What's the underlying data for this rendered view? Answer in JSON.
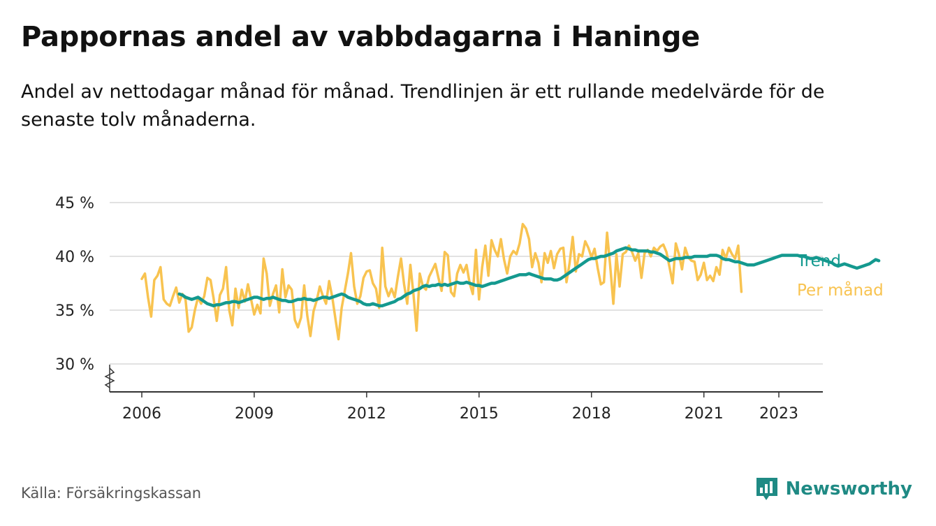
{
  "header": {
    "title": "Pappornas andel av vabbdagarna i Haninge",
    "subtitle": "Andel av nettodagar månad för månad. Trendlinjen är ett rullande medelvärde för de senaste tolv månaderna."
  },
  "footer": {
    "source": "Källa: Försäkringskassan",
    "brand": "Newsworthy"
  },
  "colors": {
    "monthly": "#f8c350",
    "trend": "#14998f",
    "grid": "#d9d9d9",
    "axis": "#333333",
    "brand": "#1f8a84"
  },
  "chart_data": {
    "type": "line",
    "title": "Pappornas andel av vabbdagarna i Haninge",
    "xlabel": "",
    "ylabel": "",
    "x_tick_labels": [
      "2006",
      "2009",
      "2012",
      "2015",
      "2018",
      "2021",
      "2023"
    ],
    "y_tick_labels": [
      "30 %",
      "35 %",
      "40 %",
      "45 %"
    ],
    "y_ticks": [
      30,
      35,
      40,
      45
    ],
    "ylim": [
      30,
      45
    ],
    "y_axis_break": true,
    "x_range": [
      "2005-07",
      "2024-03"
    ],
    "grid": "horizontal",
    "legend": "direct labels at line ends",
    "series": [
      {
        "name": "Per månad",
        "start": "2006-01",
        "frequency": "monthly",
        "values": [
          37.9,
          38.4,
          36.2,
          34.4,
          37.8,
          38.2,
          39.0,
          36.0,
          35.6,
          35.4,
          36.3,
          37.1,
          35.7,
          36.5,
          36.0,
          33.0,
          33.4,
          35.0,
          36.2,
          35.6,
          36.3,
          38.0,
          37.8,
          36.1,
          34.0,
          36.4,
          37.0,
          39.0,
          35.0,
          33.6,
          37.0,
          35.2,
          36.9,
          35.8,
          37.4,
          36.0,
          34.6,
          35.5,
          34.7,
          39.8,
          38.4,
          35.4,
          36.5,
          37.3,
          34.8,
          38.8,
          36.2,
          37.3,
          36.9,
          34.1,
          33.4,
          34.3,
          37.3,
          34.5,
          32.6,
          34.9,
          35.9,
          37.2,
          36.3,
          35.6,
          37.7,
          36.2,
          34.2,
          32.3,
          35.2,
          36.8,
          38.4,
          40.3,
          37.2,
          35.6,
          36.3,
          38.0,
          38.6,
          38.7,
          37.5,
          37.0,
          35.2,
          40.8,
          37.2,
          36.3,
          37.0,
          36.2,
          38.1,
          39.8,
          37.4,
          35.6,
          39.2,
          36.5,
          33.1,
          38.4,
          37.2,
          36.9,
          38.1,
          38.7,
          39.3,
          38.0,
          36.8,
          40.4,
          40.1,
          36.7,
          36.3,
          38.4,
          39.2,
          38.5,
          39.2,
          37.5,
          36.5,
          40.6,
          36.0,
          39.0,
          41.0,
          38.2,
          41.5,
          40.6,
          40.0,
          41.6,
          39.7,
          38.4,
          40.0,
          40.5,
          40.2,
          41.2,
          43.0,
          42.6,
          41.6,
          39.0,
          40.3,
          39.4,
          37.6,
          40.3,
          39.4,
          40.5,
          38.9,
          40.2,
          40.7,
          40.8,
          37.6,
          39.4,
          41.8,
          38.6,
          40.2,
          40.0,
          41.4,
          40.8,
          39.9,
          40.7,
          38.9,
          37.4,
          37.6,
          42.2,
          39.1,
          35.6,
          40.2,
          37.2,
          40.2,
          40.4,
          41.0,
          40.4,
          39.6,
          40.3,
          38.0,
          40.3,
          40.6,
          40.0,
          40.8,
          40.5,
          40.9,
          41.1,
          40.4,
          39.0,
          37.5,
          41.2,
          40.2,
          38.8,
          40.8,
          39.9,
          39.6,
          39.5,
          37.8,
          38.3,
          39.4,
          37.8,
          38.2,
          37.7,
          39.0,
          38.3,
          40.6,
          39.8,
          40.8,
          40.2,
          39.8,
          41.0,
          36.7
        ]
      },
      {
        "name": "Trend",
        "start": "2007-01",
        "frequency": "monthly",
        "values": [
          36.5,
          36.4,
          36.2,
          36.1,
          36.0,
          36.1,
          36.2,
          36.0,
          35.8,
          35.6,
          35.5,
          35.4,
          35.5,
          35.5,
          35.6,
          35.7,
          35.7,
          35.8,
          35.8,
          35.7,
          35.8,
          35.9,
          36.0,
          36.1,
          36.2,
          36.2,
          36.1,
          36.0,
          36.1,
          36.1,
          36.2,
          36.1,
          36.0,
          35.9,
          35.9,
          35.8,
          35.8,
          35.9,
          36.0,
          36.0,
          36.1,
          36.0,
          36.0,
          35.9,
          36.0,
          36.1,
          36.2,
          36.2,
          36.1,
          36.2,
          36.3,
          36.4,
          36.5,
          36.4,
          36.2,
          36.1,
          36.0,
          35.9,
          35.8,
          35.6,
          35.5,
          35.5,
          35.6,
          35.5,
          35.4,
          35.4,
          35.5,
          35.6,
          35.7,
          35.8,
          36.0,
          36.1,
          36.3,
          36.5,
          36.6,
          36.8,
          36.9,
          37.0,
          37.2,
          37.3,
          37.2,
          37.3,
          37.3,
          37.4,
          37.3,
          37.4,
          37.3,
          37.4,
          37.5,
          37.6,
          37.5,
          37.5,
          37.6,
          37.5,
          37.4,
          37.3,
          37.3,
          37.2,
          37.3,
          37.4,
          37.5,
          37.5,
          37.6,
          37.7,
          37.8,
          37.9,
          38.0,
          38.1,
          38.2,
          38.3,
          38.3,
          38.3,
          38.4,
          38.3,
          38.2,
          38.1,
          38.0,
          37.9,
          37.9,
          37.9,
          37.8,
          37.8,
          37.9,
          38.1,
          38.3,
          38.5,
          38.7,
          38.9,
          39.1,
          39.3,
          39.5,
          39.7,
          39.8,
          39.8,
          39.9,
          40.0,
          40.0,
          40.1,
          40.2,
          40.3,
          40.5,
          40.6,
          40.7,
          40.8,
          40.7,
          40.6,
          40.6,
          40.5,
          40.5,
          40.5,
          40.5,
          40.4,
          40.4,
          40.3,
          40.2,
          40.0,
          39.8,
          39.6,
          39.7,
          39.8,
          39.8,
          39.8,
          39.9,
          39.9,
          39.9,
          40.0,
          40.0,
          40.0,
          40.0,
          40.0,
          40.1,
          40.1,
          40.1,
          40.0,
          39.8,
          39.7,
          39.7,
          39.6,
          39.5,
          39.5,
          39.4,
          39.3,
          39.2,
          39.2,
          39.2,
          39.3,
          39.4,
          39.5,
          39.6,
          39.7,
          39.8,
          39.9,
          40.0,
          40.1,
          40.1,
          40.1,
          40.1,
          40.1,
          40.1,
          40.0,
          40.0,
          39.9,
          39.8,
          39.8,
          39.9,
          39.8,
          39.7,
          39.6,
          39.5,
          39.4,
          39.2,
          39.1,
          39.2,
          39.3,
          39.2,
          39.1,
          39.0,
          38.9,
          39.0,
          39.1,
          39.2,
          39.3,
          39.5,
          39.7,
          39.6
        ]
      }
    ]
  }
}
